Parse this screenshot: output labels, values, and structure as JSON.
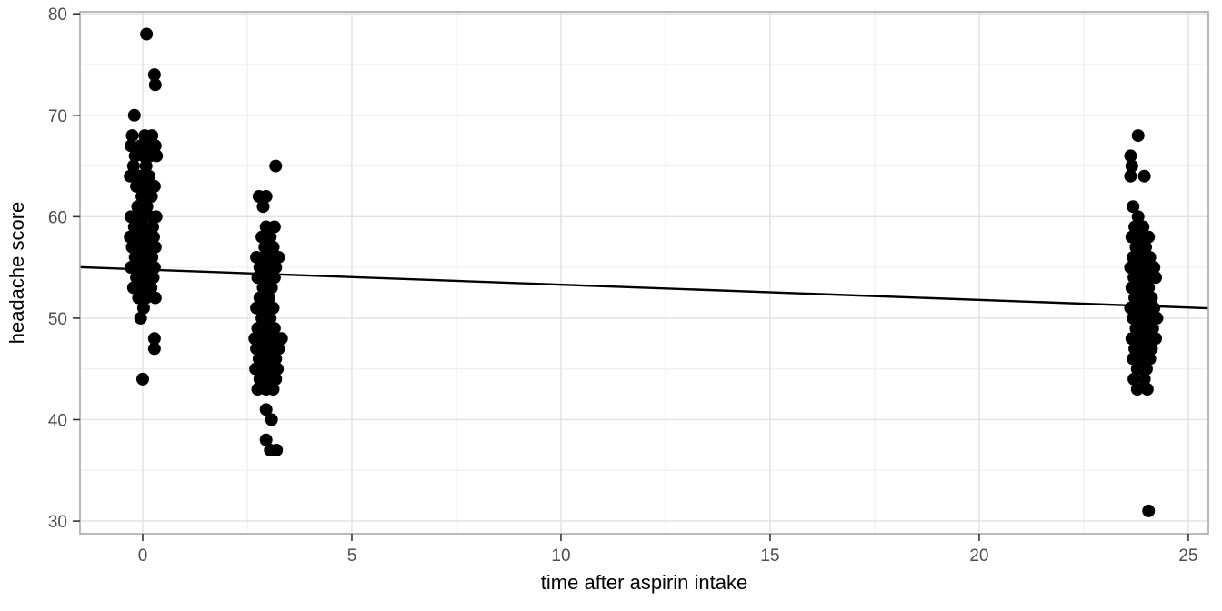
{
  "chart_data": {
    "type": "scatter",
    "title": "",
    "xlabel": "time after aspirin intake",
    "ylabel": "headache score",
    "xlim": [
      -1.5,
      25.48
    ],
    "ylim": [
      28.75,
      80.2
    ],
    "x_ticks": [
      0,
      5,
      10,
      15,
      20,
      25
    ],
    "x_minor_ticks": [
      2.5,
      7.5,
      12.5,
      17.5,
      22.5
    ],
    "y_ticks": [
      30,
      40,
      50,
      60,
      70,
      80
    ],
    "y_minor_ticks": [
      35,
      45,
      55,
      65,
      75
    ],
    "grid": true,
    "legend": "none",
    "point_color": "#000000",
    "point_radius": 7,
    "regression_line": {
      "intercept": 54.8,
      "slope": -0.15,
      "color": "#000000",
      "width": 2.4
    },
    "points": [
      [
        0.09,
        78
      ],
      [
        0.28,
        74
      ],
      [
        0.3,
        73
      ],
      [
        -0.2,
        70
      ],
      [
        -0.25,
        68
      ],
      [
        0.05,
        68
      ],
      [
        0.22,
        68
      ],
      [
        -0.28,
        67
      ],
      [
        -0.05,
        67
      ],
      [
        0.12,
        67
      ],
      [
        0.3,
        67
      ],
      [
        -0.18,
        66
      ],
      [
        0.02,
        66
      ],
      [
        0.18,
        66
      ],
      [
        0.33,
        66
      ],
      [
        -0.22,
        65
      ],
      [
        0.08,
        65
      ],
      [
        -0.3,
        64
      ],
      [
        -0.08,
        64
      ],
      [
        0.15,
        64
      ],
      [
        -0.15,
        63
      ],
      [
        0.05,
        63
      ],
      [
        0.28,
        63
      ],
      [
        -0.02,
        62
      ],
      [
        0.21,
        62
      ],
      [
        -0.12,
        61
      ],
      [
        0.1,
        61
      ],
      [
        -0.28,
        60
      ],
      [
        -0.1,
        60
      ],
      [
        0.04,
        60
      ],
      [
        0.18,
        60
      ],
      [
        0.32,
        60
      ],
      [
        -0.2,
        59
      ],
      [
        0.0,
        59
      ],
      [
        0.24,
        59
      ],
      [
        -0.3,
        58
      ],
      [
        -0.12,
        58
      ],
      [
        0.08,
        58
      ],
      [
        0.26,
        58
      ],
      [
        -0.25,
        57
      ],
      [
        -0.05,
        57
      ],
      [
        0.12,
        57
      ],
      [
        0.3,
        57
      ],
      [
        -0.18,
        56
      ],
      [
        0.02,
        56
      ],
      [
        0.22,
        56
      ],
      [
        -0.28,
        55
      ],
      [
        -0.08,
        55
      ],
      [
        0.1,
        55
      ],
      [
        0.28,
        55
      ],
      [
        -0.15,
        54
      ],
      [
        0.05,
        54
      ],
      [
        0.25,
        54
      ],
      [
        -0.22,
        53
      ],
      [
        0.0,
        53
      ],
      [
        0.2,
        53
      ],
      [
        -0.1,
        52
      ],
      [
        0.08,
        52
      ],
      [
        0.3,
        52
      ],
      [
        0.02,
        51
      ],
      [
        -0.05,
        50
      ],
      [
        0.28,
        48
      ],
      [
        0.28,
        47
      ],
      [
        0.0,
        44
      ],
      [
        3.18,
        65
      ],
      [
        2.78,
        62
      ],
      [
        2.95,
        62
      ],
      [
        2.88,
        61
      ],
      [
        2.95,
        59
      ],
      [
        3.15,
        59
      ],
      [
        2.85,
        58
      ],
      [
        3.05,
        58
      ],
      [
        2.92,
        57
      ],
      [
        3.12,
        57
      ],
      [
        2.72,
        56
      ],
      [
        2.9,
        56
      ],
      [
        3.08,
        56
      ],
      [
        3.25,
        56
      ],
      [
        2.8,
        55
      ],
      [
        3.0,
        55
      ],
      [
        3.18,
        55
      ],
      [
        2.75,
        54
      ],
      [
        2.95,
        54
      ],
      [
        3.15,
        54
      ],
      [
        2.88,
        53
      ],
      [
        3.08,
        53
      ],
      [
        2.8,
        52
      ],
      [
        3.02,
        52
      ],
      [
        2.72,
        51
      ],
      [
        2.92,
        51
      ],
      [
        3.12,
        51
      ],
      [
        2.85,
        50
      ],
      [
        3.05,
        50
      ],
      [
        2.75,
        49
      ],
      [
        2.95,
        49
      ],
      [
        3.15,
        49
      ],
      [
        2.68,
        48
      ],
      [
        2.82,
        48
      ],
      [
        2.95,
        48
      ],
      [
        3.08,
        48
      ],
      [
        3.2,
        48
      ],
      [
        3.32,
        48
      ],
      [
        2.72,
        47
      ],
      [
        2.9,
        47
      ],
      [
        3.08,
        47
      ],
      [
        3.25,
        47
      ],
      [
        2.78,
        46
      ],
      [
        2.98,
        46
      ],
      [
        3.18,
        46
      ],
      [
        2.7,
        45
      ],
      [
        2.88,
        45
      ],
      [
        3.05,
        45
      ],
      [
        3.22,
        45
      ],
      [
        2.8,
        44
      ],
      [
        3.0,
        44
      ],
      [
        3.18,
        44
      ],
      [
        2.75,
        43
      ],
      [
        2.95,
        43
      ],
      [
        3.12,
        43
      ],
      [
        2.95,
        41
      ],
      [
        3.08,
        40
      ],
      [
        2.95,
        38
      ],
      [
        3.05,
        37
      ],
      [
        3.2,
        37
      ],
      [
        23.8,
        68
      ],
      [
        23.62,
        66
      ],
      [
        23.65,
        65
      ],
      [
        23.62,
        64
      ],
      [
        23.95,
        64
      ],
      [
        23.68,
        61
      ],
      [
        23.8,
        60
      ],
      [
        23.72,
        59
      ],
      [
        23.92,
        59
      ],
      [
        23.65,
        58
      ],
      [
        23.85,
        58
      ],
      [
        24.05,
        58
      ],
      [
        23.75,
        57
      ],
      [
        23.98,
        57
      ],
      [
        23.68,
        56
      ],
      [
        23.88,
        56
      ],
      [
        24.08,
        56
      ],
      [
        23.62,
        55
      ],
      [
        23.8,
        55
      ],
      [
        24.0,
        55
      ],
      [
        24.18,
        55
      ],
      [
        23.7,
        54
      ],
      [
        23.88,
        54
      ],
      [
        24.06,
        54
      ],
      [
        24.22,
        54
      ],
      [
        23.65,
        53
      ],
      [
        23.85,
        53
      ],
      [
        24.05,
        53
      ],
      [
        23.72,
        52
      ],
      [
        23.92,
        52
      ],
      [
        24.12,
        52
      ],
      [
        23.62,
        51
      ],
      [
        23.82,
        51
      ],
      [
        24.0,
        51
      ],
      [
        24.18,
        51
      ],
      [
        23.68,
        50
      ],
      [
        23.88,
        50
      ],
      [
        24.08,
        50
      ],
      [
        24.25,
        50
      ],
      [
        23.75,
        49
      ],
      [
        23.95,
        49
      ],
      [
        24.15,
        49
      ],
      [
        23.65,
        48
      ],
      [
        23.85,
        48
      ],
      [
        24.05,
        48
      ],
      [
        24.22,
        48
      ],
      [
        23.72,
        47
      ],
      [
        23.92,
        47
      ],
      [
        24.12,
        47
      ],
      [
        23.68,
        46
      ],
      [
        23.88,
        46
      ],
      [
        24.08,
        46
      ],
      [
        23.78,
        45
      ],
      [
        24.0,
        45
      ],
      [
        23.7,
        44
      ],
      [
        23.95,
        44
      ],
      [
        23.78,
        43
      ],
      [
        24.02,
        43
      ],
      [
        24.05,
        31
      ]
    ]
  },
  "style": {
    "background": "#ffffff",
    "panel_fill": "#ffffff",
    "panel_border": "#a8a8a8",
    "grid_major": "#e2e2e2",
    "grid_minor": "#f0f0f0",
    "tick_mark": "#333333",
    "tick_label": "#4d4d4d",
    "axis_title": "#000000"
  }
}
